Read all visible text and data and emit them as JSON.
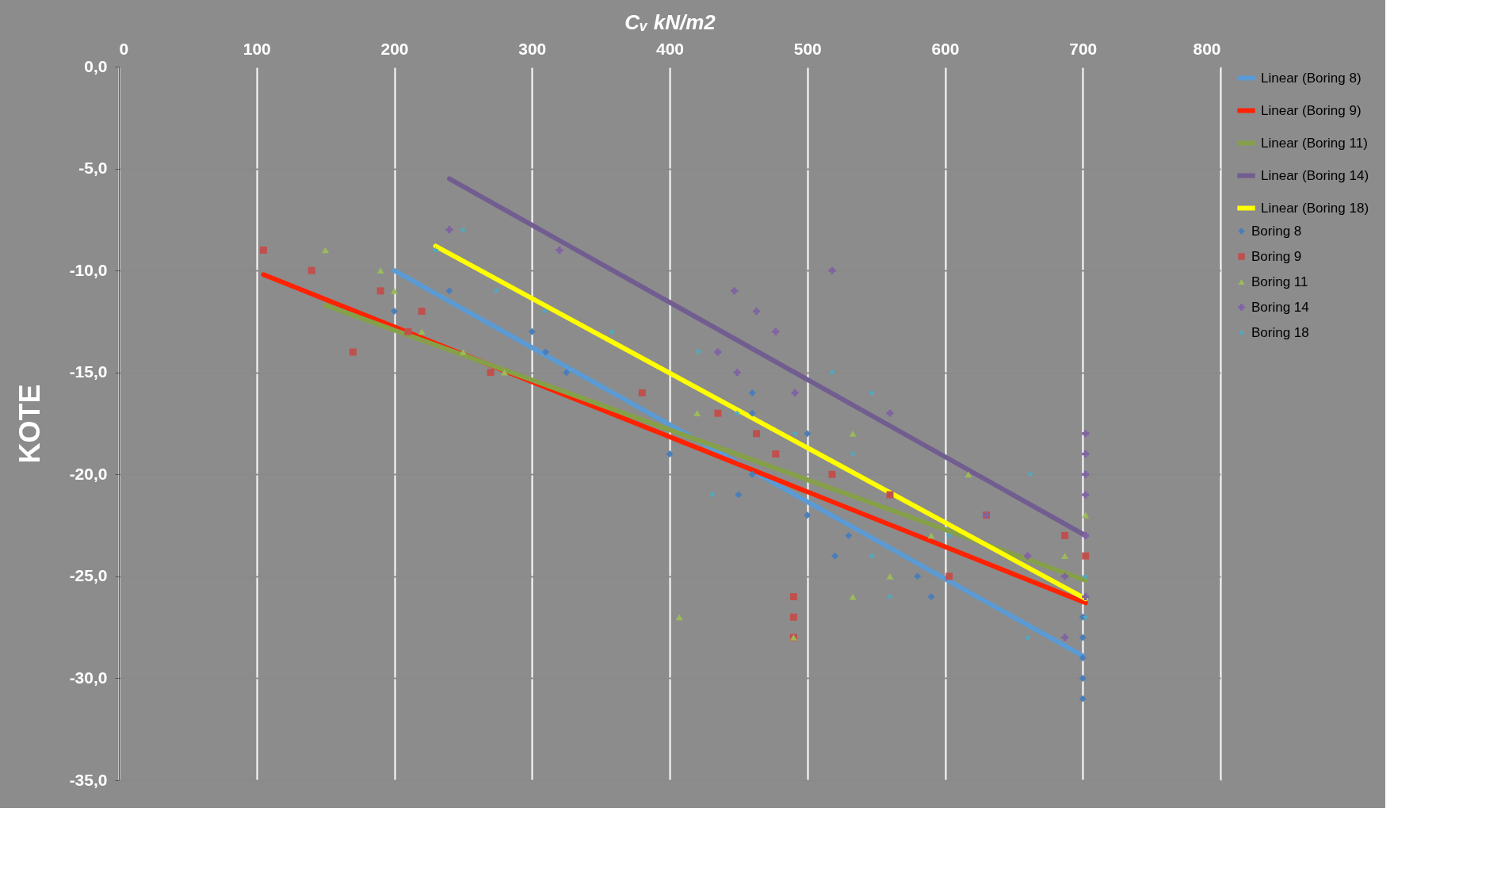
{
  "chart_data": {
    "type": "scatter",
    "xlabel": "Cᵥ kN/m2",
    "ylabel": "KOTE",
    "xlim": [
      0,
      800
    ],
    "xticks": [
      0,
      100,
      200,
      300,
      400,
      500,
      600,
      700,
      800
    ],
    "ylim": [
      -35,
      0
    ],
    "yticks": [
      {
        "value": 0,
        "label": "0,0"
      },
      {
        "value": -5,
        "label": "-5,0"
      },
      {
        "value": -10,
        "label": "-10,0"
      },
      {
        "value": -15,
        "label": "-15,0"
      },
      {
        "value": -20,
        "label": "-20,0"
      },
      {
        "value": -25,
        "label": "-25,0"
      },
      {
        "value": -30,
        "label": "-30,0"
      },
      {
        "value": -35,
        "label": "-35,0"
      }
    ],
    "grid": true,
    "legend": "right",
    "series": [
      {
        "name": "Boring 8",
        "type": "scatter",
        "marker": "diamond",
        "color": "#4a7ebb",
        "x": [
          200,
          240,
          300,
          310,
          325,
          400,
          460,
          460,
          460,
          450,
          500,
          500,
          520,
          530,
          580,
          590,
          700,
          700,
          700,
          700,
          700
        ],
        "values": [
          -12,
          -11,
          -13,
          -14,
          -15,
          -19,
          -16,
          -17,
          -20,
          -21,
          -18,
          -22,
          -24,
          -23,
          -25,
          -26,
          -27,
          -28,
          -29,
          -30,
          -31
        ]
      },
      {
        "name": "Boring 9",
        "type": "scatter",
        "marker": "square",
        "color": "#c0504d",
        "x": [
          105,
          140,
          170,
          190,
          220,
          210,
          270,
          380,
          435,
          463,
          477,
          518,
          560,
          630,
          603,
          490,
          490,
          490,
          687,
          702
        ],
        "values": [
          -9,
          -10,
          -14,
          -11,
          -12,
          -13,
          -15,
          -16,
          -17,
          -18,
          -19,
          -20,
          -21,
          -22,
          -25,
          -26,
          -27,
          -28,
          -23,
          -24
        ]
      },
      {
        "name": "Boring 11",
        "type": "scatter",
        "marker": "triangle",
        "color": "#9bbb59",
        "x": [
          150,
          190,
          200,
          220,
          250,
          280,
          420,
          533,
          617,
          590,
          560,
          533,
          407,
          490,
          702,
          687
        ],
        "values": [
          -9,
          -10,
          -11,
          -13,
          -14,
          -15,
          -17,
          -18,
          -20,
          -23,
          -25,
          -26,
          -27,
          -28,
          -22,
          -24
        ]
      },
      {
        "name": "Boring 14",
        "type": "scatter",
        "marker": "cross",
        "color": "#8064a2",
        "x": [
          240,
          320,
          518,
          447,
          463,
          477,
          435,
          449,
          491,
          560,
          702,
          702,
          702,
          702,
          702,
          702,
          687,
          687,
          660,
          630
        ],
        "values": [
          -8,
          -9,
          -10,
          -11,
          -12,
          -13,
          -14,
          -15,
          -16,
          -17,
          -18,
          -19,
          -20,
          -21,
          -23,
          -26,
          -25,
          -28,
          -24,
          -22
        ]
      },
      {
        "name": "Boring 18",
        "type": "scatter",
        "marker": "star",
        "color": "#4bacc6",
        "x": [
          250,
          230,
          274,
          309,
          358,
          421,
          518,
          547,
          449,
          491,
          533,
          431,
          547,
          560,
          603,
          662,
          660,
          702,
          702
        ],
        "values": [
          -8,
          -9,
          -11,
          -12,
          -13,
          -14,
          -15,
          -16,
          -17,
          -18,
          -19,
          -21,
          -24,
          -26,
          -23,
          -20,
          -28,
          -25,
          -27
        ]
      },
      {
        "name": "Linear (Boring 8)",
        "type": "line",
        "color": "#5b9bd5",
        "x": [
          200,
          700
        ],
        "values": [
          -10,
          -28.9
        ]
      },
      {
        "name": "Linear (Boring 9)",
        "type": "line",
        "color": "#ff2200",
        "x": [
          105,
          702
        ],
        "values": [
          -10.2,
          -26.3
        ]
      },
      {
        "name": "Linear (Boring 11)",
        "type": "line",
        "color": "#86a04a",
        "x": [
          150,
          702
        ],
        "values": [
          -11.7,
          -25.2
        ]
      },
      {
        "name": "Linear (Boring 14)",
        "type": "line",
        "color": "#725d91",
        "x": [
          240,
          702
        ],
        "values": [
          -5.5,
          -23
        ]
      },
      {
        "name": "Linear (Boring 18)",
        "type": "line",
        "color": "#ffff00",
        "x": [
          230,
          702
        ],
        "values": [
          -8.8,
          -26.1
        ]
      }
    ]
  }
}
